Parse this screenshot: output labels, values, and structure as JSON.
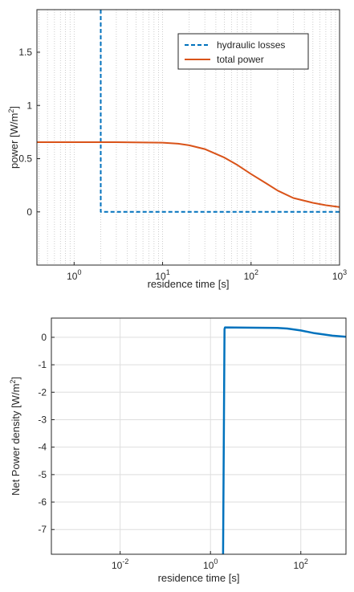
{
  "colors": {
    "hydraulic": "#0072BD",
    "total": "#D95319",
    "net": "#0072BD",
    "grid": "#b8b8b8",
    "axis": "#262626"
  },
  "chart_data": [
    {
      "type": "line",
      "xscale": "log",
      "xlabel": "residence time [s]",
      "ylabel_base": "power [W/m",
      "ylabel_sup": "2",
      "ylabel_end": "]",
      "xlim": [
        0.38,
        1000
      ],
      "ylim": [
        -0.5,
        1.9
      ],
      "xticks": [
        {
          "value": 1,
          "base": "10",
          "exp": "0"
        },
        {
          "value": 10,
          "base": "10",
          "exp": "1"
        },
        {
          "value": 100,
          "base": "10",
          "exp": "2"
        },
        {
          "value": 1000,
          "base": "10",
          "exp": "3"
        }
      ],
      "yticks": [
        {
          "value": 0,
          "label": "0"
        },
        {
          "value": 0.5,
          "label": "0.5"
        },
        {
          "value": 1,
          "label": "1"
        },
        {
          "value": 1.5,
          "label": "1.5"
        }
      ],
      "grid": "x-minor-dotted",
      "legend_position": "top-right",
      "series": [
        {
          "name": "hydraulic losses",
          "style": "dashed",
          "x": [
            2,
            2,
            1000
          ],
          "y": [
            1.9,
            0.0,
            0.0
          ]
        },
        {
          "name": "total power",
          "style": "solid",
          "x": [
            0.38,
            1,
            3,
            10,
            15,
            20,
            30,
            50,
            70,
            100,
            150,
            200,
            300,
            500,
            700,
            1000
          ],
          "y": [
            0.655,
            0.655,
            0.655,
            0.65,
            0.64,
            0.625,
            0.59,
            0.51,
            0.44,
            0.355,
            0.265,
            0.2,
            0.13,
            0.085,
            0.062,
            0.045
          ]
        }
      ]
    },
    {
      "type": "line",
      "xscale": "log",
      "xlabel": "residence time [s]",
      "ylabel_base": "Net Power density [W/m",
      "ylabel_sup": "2",
      "ylabel_end": "]",
      "xlim": [
        0.0003,
        1000
      ],
      "ylim": [
        -7.9,
        0.7
      ],
      "xticks": [
        {
          "value": 0.01,
          "base": "10",
          "exp": "-2"
        },
        {
          "value": 1,
          "base": "10",
          "exp": "0"
        },
        {
          "value": 100,
          "base": "10",
          "exp": "2"
        }
      ],
      "yticks": [
        {
          "value": 0,
          "label": "0"
        },
        {
          "value": -1,
          "label": "-1"
        },
        {
          "value": -2,
          "label": "-2"
        },
        {
          "value": -3,
          "label": "-3"
        },
        {
          "value": -4,
          "label": "-4"
        },
        {
          "value": -5,
          "label": "-5"
        },
        {
          "value": -6,
          "label": "-6"
        },
        {
          "value": -7,
          "label": "-7"
        }
      ],
      "grid": "major",
      "series": [
        {
          "style": "solid",
          "x": [
            1.9,
            2.05,
            2.1,
            10,
            30,
            50,
            100,
            200,
            500,
            1000
          ],
          "y": [
            -7.9,
            0.3,
            0.36,
            0.35,
            0.34,
            0.32,
            0.25,
            0.15,
            0.06,
            0.02
          ]
        }
      ]
    }
  ]
}
